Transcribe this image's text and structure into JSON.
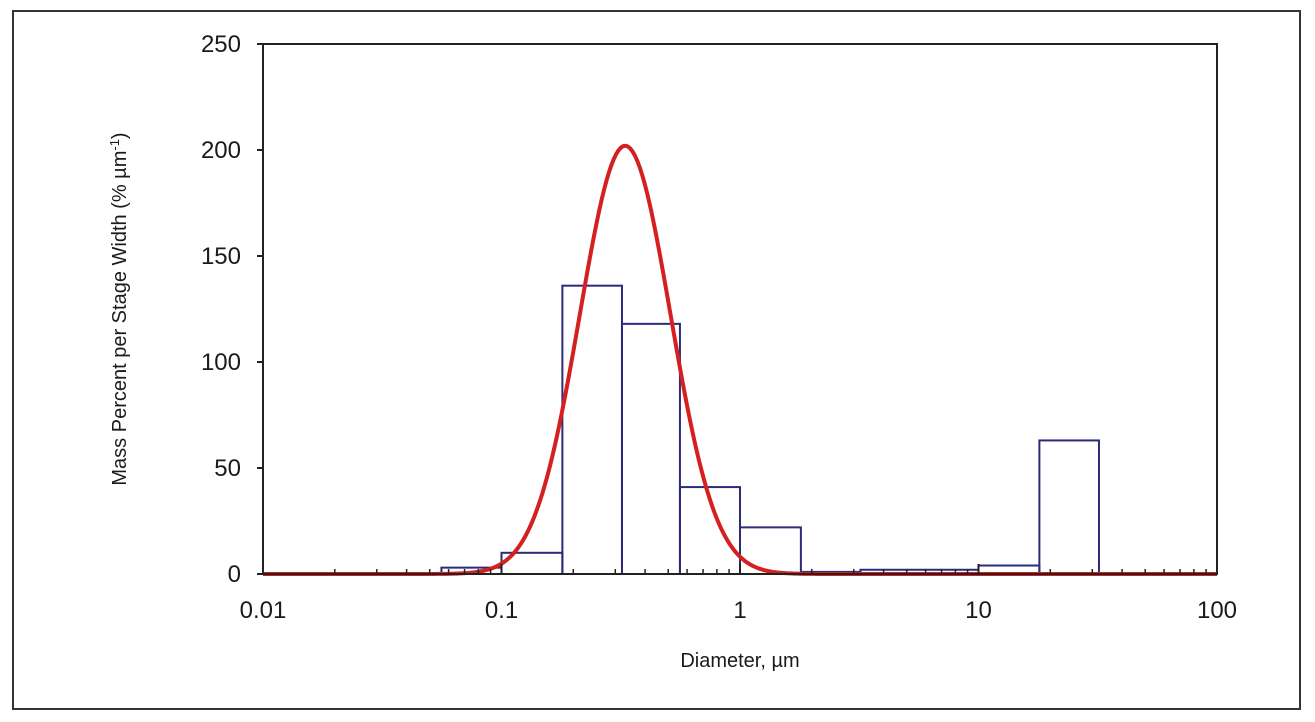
{
  "chart_data": {
    "type": "bar",
    "xlabel": "Diameter, µm",
    "ylabel": "Mass Percent per Stage Width (%  µm",
    "ylabel_sup": "-1",
    "ylabel_close": ")",
    "x_scale": "log",
    "xlim": [
      0.01,
      100
    ],
    "ylim": [
      0,
      250
    ],
    "x_ticks": [
      0.01,
      0.1,
      1,
      10,
      100
    ],
    "x_tick_labels": [
      "0.01",
      "0.1",
      "1",
      "10",
      "100"
    ],
    "y_ticks": [
      0,
      50,
      100,
      150,
      200,
      250
    ],
    "y_tick_labels": [
      "0",
      "50",
      "100",
      "150",
      "200",
      "250"
    ],
    "grid": false,
    "series": [
      {
        "type": "bar",
        "color": "#2b2b7a",
        "bins": [
          {
            "x0": 0.056,
            "x1": 0.1,
            "value": 3
          },
          {
            "x0": 0.1,
            "x1": 0.18,
            "value": 10
          },
          {
            "x0": 0.18,
            "x1": 0.32,
            "value": 136
          },
          {
            "x0": 0.32,
            "x1": 0.56,
            "value": 118
          },
          {
            "x0": 0.56,
            "x1": 1.0,
            "value": 41
          },
          {
            "x0": 1.0,
            "x1": 1.8,
            "value": 22
          },
          {
            "x0": 1.8,
            "x1": 3.2,
            "value": 1
          },
          {
            "x0": 3.2,
            "x1": 10,
            "value": 2
          },
          {
            "x0": 10,
            "x1": 18,
            "value": 4
          },
          {
            "x0": 18,
            "x1": 32,
            "value": 63
          }
        ]
      },
      {
        "type": "line",
        "color": "#d42020",
        "model": "lognormal",
        "peak": 202,
        "center_diameter": 0.33,
        "log10_sigma": 0.19
      }
    ]
  }
}
